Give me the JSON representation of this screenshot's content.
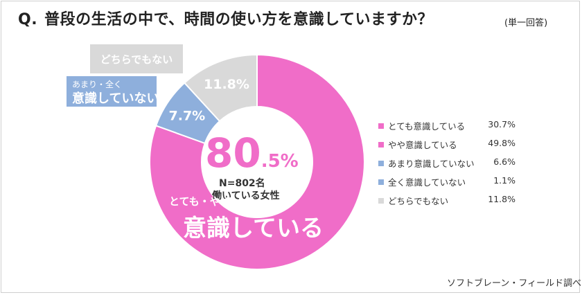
{
  "header": {
    "q_mark": "Q.",
    "question": "普段の生活の中で、時間の使い方を意識していますか？",
    "answer_type": "(単一回答)"
  },
  "colors": {
    "pink": "#f06dc8",
    "blue": "#8eafdc",
    "gray": "#d9d9d9"
  },
  "chart_data": {
    "type": "pie",
    "style": "donut",
    "categories": [
      "とても・やや 意識している",
      "あまり・全く 意識していない",
      "どちらでもない"
    ],
    "values": [
      80.5,
      7.7,
      11.8
    ],
    "data_labels": [
      "",
      "7.7%",
      "11.8%"
    ],
    "colors": [
      "#f06dc8",
      "#8eafdc",
      "#d9d9d9"
    ],
    "legend": {
      "placement": "right",
      "items": [
        {
          "label": "とても意識している",
          "value": "30.7%",
          "color": "#f06dc8"
        },
        {
          "label": "やや意識している",
          "value": "49.8%",
          "color": "#f06dc8"
        },
        {
          "label": "あまり意識していない",
          "value": "6.6%",
          "color": "#8eafdc"
        },
        {
          "label": "全く意識していない",
          "value": "1.1%",
          "color": "#8eafdc"
        },
        {
          "label": "どちらでもない",
          "value": "11.8%",
          "color": "#d9d9d9"
        }
      ]
    }
  },
  "annotations": {
    "neutral_callout": "どちらでもない",
    "not_aware_line1": "あまり・全く",
    "not_aware_line2": "意識していない",
    "center_big": "80",
    "center_small": ".5%",
    "center_n": "N=802名",
    "center_population": "働いている女性",
    "aware_line1": "とても・やや",
    "aware_line2": "意識している"
  },
  "footer": {
    "credit": "ソフトブレーン・フィールド調べ"
  }
}
